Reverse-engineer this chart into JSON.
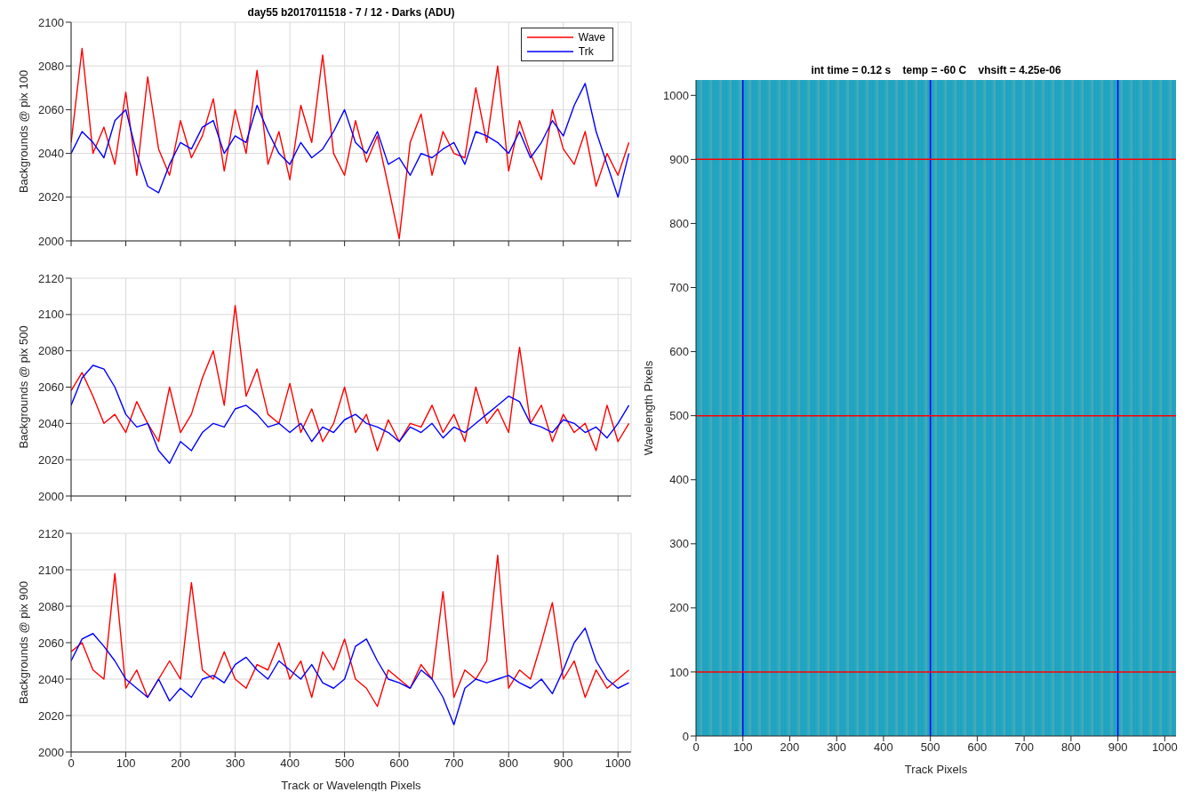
{
  "chart_data": [
    {
      "type": "line",
      "title": "day55 b2017011518 - 7 / 12 - Darks (ADU)",
      "ylabel": "Backgrounds @ pix 100",
      "x": [
        0,
        20,
        40,
        60,
        80,
        100,
        120,
        140,
        160,
        180,
        200,
        220,
        240,
        260,
        280,
        300,
        320,
        340,
        360,
        380,
        400,
        420,
        440,
        460,
        480,
        500,
        520,
        540,
        560,
        580,
        600,
        620,
        640,
        660,
        680,
        700,
        720,
        740,
        760,
        780,
        800,
        820,
        840,
        860,
        880,
        900,
        920,
        940,
        960,
        980,
        1000,
        1020
      ],
      "xlim": [
        0,
        1024
      ],
      "xticks": [
        0,
        100,
        200,
        300,
        400,
        500,
        600,
        700,
        800,
        900,
        1000
      ],
      "ylim": [
        2000,
        2100
      ],
      "yticks": [
        2000,
        2020,
        2040,
        2060,
        2080,
        2100
      ],
      "grid": true,
      "legend": "top right",
      "tick_labels": "y",
      "series": [
        {
          "name": "Wave",
          "color": "#ff0000",
          "values": [
            2045,
            2088,
            2040,
            2052,
            2035,
            2068,
            2030,
            2075,
            2042,
            2030,
            2055,
            2038,
            2048,
            2065,
            2032,
            2060,
            2040,
            2078,
            2035,
            2050,
            2028,
            2062,
            2045,
            2085,
            2040,
            2030,
            2055,
            2036,
            2048,
            2025,
            2001,
            2045,
            2058,
            2030,
            2050,
            2040,
            2038,
            2070,
            2045,
            2080,
            2032,
            2055,
            2040,
            2028,
            2060,
            2042,
            2035,
            2050,
            2025,
            2040,
            2030,
            2045
          ]
        },
        {
          "name": "Trk",
          "color": "#0000ff",
          "values": [
            2040,
            2050,
            2045,
            2038,
            2055,
            2060,
            2040,
            2025,
            2022,
            2035,
            2045,
            2042,
            2052,
            2055,
            2040,
            2048,
            2045,
            2062,
            2050,
            2040,
            2035,
            2045,
            2038,
            2042,
            2050,
            2060,
            2045,
            2040,
            2050,
            2035,
            2038,
            2030,
            2040,
            2038,
            2042,
            2045,
            2035,
            2050,
            2048,
            2045,
            2040,
            2050,
            2038,
            2045,
            2055,
            2048,
            2062,
            2072,
            2050,
            2035,
            2020,
            2040
          ]
        }
      ]
    },
    {
      "type": "line",
      "ylabel": "Backgrounds @ pix 500",
      "x": [
        0,
        20,
        40,
        60,
        80,
        100,
        120,
        140,
        160,
        180,
        200,
        220,
        240,
        260,
        280,
        300,
        320,
        340,
        360,
        380,
        400,
        420,
        440,
        460,
        480,
        500,
        520,
        540,
        560,
        580,
        600,
        620,
        640,
        660,
        680,
        700,
        720,
        740,
        760,
        780,
        800,
        820,
        840,
        860,
        880,
        900,
        920,
        940,
        960,
        980,
        1000,
        1020
      ],
      "xlim": [
        0,
        1024
      ],
      "xticks": [
        0,
        100,
        200,
        300,
        400,
        500,
        600,
        700,
        800,
        900,
        1000
      ],
      "ylim": [
        2000,
        2120
      ],
      "yticks": [
        2000,
        2020,
        2040,
        2060,
        2080,
        2100,
        2120
      ],
      "grid": true,
      "tick_labels": "y",
      "series": [
        {
          "color": "#ff0000",
          "values": [
            2058,
            2068,
            2055,
            2040,
            2045,
            2035,
            2052,
            2040,
            2030,
            2060,
            2035,
            2045,
            2065,
            2080,
            2050,
            2105,
            2055,
            2070,
            2045,
            2040,
            2062,
            2035,
            2048,
            2030,
            2040,
            2060,
            2035,
            2045,
            2025,
            2042,
            2030,
            2040,
            2038,
            2050,
            2035,
            2045,
            2030,
            2060,
            2040,
            2048,
            2035,
            2082,
            2040,
            2050,
            2030,
            2045,
            2035,
            2040,
            2025,
            2050,
            2030,
            2040
          ]
        },
        {
          "color": "#0000ff",
          "values": [
            2050,
            2065,
            2072,
            2070,
            2060,
            2045,
            2038,
            2040,
            2025,
            2018,
            2030,
            2025,
            2035,
            2040,
            2038,
            2048,
            2050,
            2045,
            2038,
            2040,
            2035,
            2040,
            2030,
            2038,
            2035,
            2042,
            2045,
            2040,
            2038,
            2035,
            2030,
            2038,
            2035,
            2040,
            2032,
            2038,
            2035,
            2040,
            2045,
            2050,
            2055,
            2052,
            2040,
            2038,
            2035,
            2042,
            2040,
            2035,
            2038,
            2032,
            2040,
            2050
          ]
        }
      ]
    },
    {
      "type": "line",
      "ylabel": "Backgrounds @ pix 900",
      "xlabel": "Track or Wavelength Pixels",
      "x": [
        0,
        20,
        40,
        60,
        80,
        100,
        120,
        140,
        160,
        180,
        200,
        220,
        240,
        260,
        280,
        300,
        320,
        340,
        360,
        380,
        400,
        420,
        440,
        460,
        480,
        500,
        520,
        540,
        560,
        580,
        600,
        620,
        640,
        660,
        680,
        700,
        720,
        740,
        760,
        780,
        800,
        820,
        840,
        860,
        880,
        900,
        920,
        940,
        960,
        980,
        1000,
        1020
      ],
      "xlim": [
        0,
        1024
      ],
      "xticks": [
        0,
        100,
        200,
        300,
        400,
        500,
        600,
        700,
        800,
        900,
        1000
      ],
      "ylim": [
        2000,
        2120
      ],
      "yticks": [
        2000,
        2020,
        2040,
        2060,
        2080,
        2100,
        2120
      ],
      "grid": true,
      "series": [
        {
          "color": "#ff0000",
          "values": [
            2055,
            2060,
            2045,
            2040,
            2098,
            2035,
            2045,
            2030,
            2040,
            2050,
            2040,
            2093,
            2045,
            2040,
            2055,
            2040,
            2035,
            2048,
            2045,
            2060,
            2040,
            2050,
            2030,
            2055,
            2045,
            2062,
            2040,
            2035,
            2025,
            2045,
            2040,
            2035,
            2048,
            2040,
            2088,
            2030,
            2045,
            2040,
            2050,
            2108,
            2035,
            2045,
            2040,
            2060,
            2082,
            2040,
            2050,
            2030,
            2045,
            2035,
            2040,
            2045
          ]
        },
        {
          "color": "#0000ff",
          "values": [
            2050,
            2062,
            2065,
            2058,
            2050,
            2040,
            2035,
            2030,
            2040,
            2028,
            2035,
            2030,
            2040,
            2042,
            2038,
            2048,
            2052,
            2045,
            2040,
            2050,
            2045,
            2040,
            2048,
            2038,
            2035,
            2040,
            2058,
            2062,
            2050,
            2040,
            2038,
            2035,
            2045,
            2040,
            2030,
            2015,
            2035,
            2040,
            2038,
            2040,
            2042,
            2038,
            2035,
            2040,
            2032,
            2045,
            2060,
            2068,
            2050,
            2040,
            2035,
            2038
          ]
        }
      ]
    },
    {
      "type": "line",
      "title": "int time = 0.12 s    temp = -60 C    vhsift = 4.25e-06",
      "xlabel": "Track Pixels",
      "ylabel": "Wavelength Pixels",
      "xlim": [
        0,
        1024
      ],
      "xticks": [
        0,
        100,
        200,
        300,
        400,
        500,
        600,
        700,
        800,
        900,
        1000
      ],
      "ylim": [
        0,
        1024
      ],
      "yticks": [
        0,
        100,
        200,
        300,
        400,
        500,
        600,
        700,
        800,
        900,
        1000
      ],
      "ref_lines": [
        {
          "axis": "x",
          "value": 100,
          "color": "#0000ff"
        },
        {
          "axis": "x",
          "value": 500,
          "color": "#0000ff"
        },
        {
          "axis": "x",
          "value": 900,
          "color": "#0000ff"
        },
        {
          "axis": "y",
          "value": 100,
          "color": "#ff0000"
        },
        {
          "axis": "y",
          "value": 500,
          "color": "#ff0000"
        },
        {
          "axis": "y",
          "value": 900,
          "color": "#ff0000"
        }
      ]
    }
  ]
}
